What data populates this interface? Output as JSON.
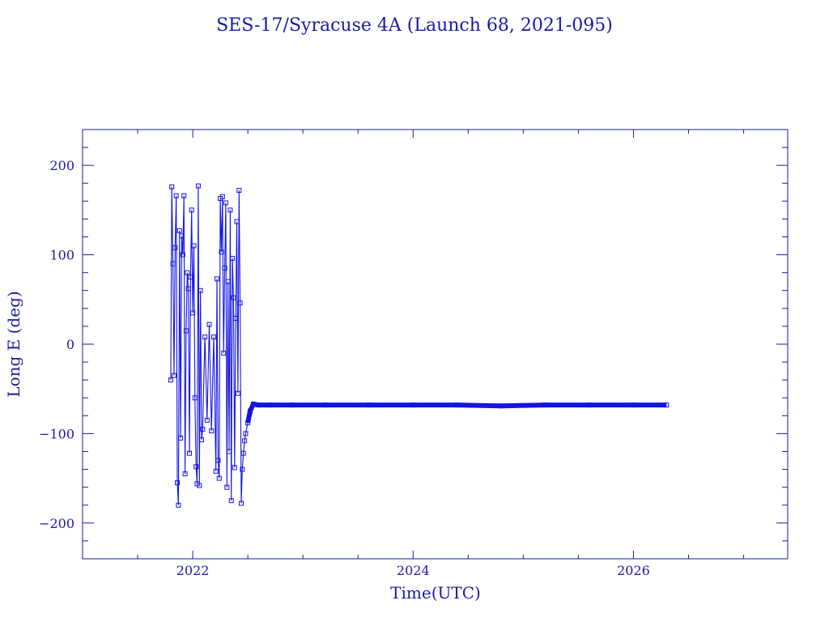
{
  "chart_data": {
    "type": "line",
    "title": "SES-17/Syracuse 4A (Launch 68, 2021-095)",
    "xlabel": "Time(UTC)",
    "ylabel": "Long E (deg)",
    "xlim": [
      2021.0,
      2027.4
    ],
    "ylim": [
      -240,
      240
    ],
    "x_major_ticks": [
      2022,
      2024,
      2026
    ],
    "x_minor_ticks": [
      2021.0,
      2021.5,
      2022.5,
      2023.0,
      2023.5,
      2024.5,
      2025.0,
      2025.5,
      2026.5,
      2027.0
    ],
    "y_major_ticks": [
      -200,
      -100,
      0,
      100,
      200
    ],
    "y_minor_ticks": [
      -220,
      -180,
      -160,
      -140,
      -120,
      -80,
      -60,
      -40,
      -20,
      20,
      40,
      60,
      80,
      120,
      140,
      160,
      180,
      220
    ],
    "grid": false,
    "colors": {
      "line": "#1414e6",
      "marker": "#1414e6",
      "axis": "#1a1aa6",
      "text": "#1a1aa6"
    },
    "series": [
      {
        "marker": "square",
        "points": [
          [
            2021.8,
            -40
          ],
          [
            2021.81,
            176
          ],
          [
            2021.82,
            90
          ],
          [
            2021.83,
            -35
          ],
          [
            2021.84,
            108
          ],
          [
            2021.85,
            166
          ],
          [
            2021.86,
            -155
          ],
          [
            2021.87,
            -180
          ],
          [
            2021.88,
            127
          ],
          [
            2021.89,
            -105
          ],
          [
            2021.9,
            121
          ],
          [
            2021.91,
            100
          ],
          [
            2021.92,
            166
          ],
          [
            2021.93,
            -145
          ],
          [
            2021.94,
            15
          ],
          [
            2021.95,
            80
          ],
          [
            2021.96,
            62
          ],
          [
            2021.97,
            -122
          ],
          [
            2021.98,
            75
          ],
          [
            2021.99,
            150
          ],
          [
            2022.0,
            35
          ],
          [
            2022.01,
            110
          ],
          [
            2022.02,
            -60
          ],
          [
            2022.03,
            -137
          ],
          [
            2022.04,
            -156
          ],
          [
            2022.05,
            177
          ],
          [
            2022.06,
            -158
          ],
          [
            2022.07,
            60
          ],
          [
            2022.08,
            -107
          ],
          [
            2022.09,
            -95
          ],
          [
            2022.11,
            8
          ],
          [
            2022.13,
            -85
          ],
          [
            2022.15,
            22
          ],
          [
            2022.17,
            -97
          ],
          [
            2022.19,
            8
          ],
          [
            2022.21,
            -142
          ],
          [
            2022.22,
            73
          ],
          [
            2022.23,
            -130
          ],
          [
            2022.24,
            -150
          ],
          [
            2022.25,
            163
          ],
          [
            2022.26,
            103
          ],
          [
            2022.27,
            165
          ],
          [
            2022.28,
            -10
          ],
          [
            2022.29,
            85
          ],
          [
            2022.3,
            158
          ],
          [
            2022.31,
            -160
          ],
          [
            2022.32,
            70
          ],
          [
            2022.33,
            -120
          ],
          [
            2022.34,
            150
          ],
          [
            2022.35,
            -175
          ],
          [
            2022.36,
            96
          ],
          [
            2022.37,
            52
          ],
          [
            2022.38,
            -138
          ],
          [
            2022.39,
            29
          ],
          [
            2022.4,
            137
          ],
          [
            2022.41,
            -55
          ],
          [
            2022.42,
            172
          ],
          [
            2022.43,
            46
          ],
          [
            2022.44,
            -178
          ],
          [
            2022.45,
            -140
          ],
          [
            2022.46,
            -122
          ],
          [
            2022.47,
            -108
          ],
          [
            2022.48,
            -100
          ],
          [
            2022.5,
            -88
          ],
          [
            2022.52,
            -75
          ],
          [
            2022.55,
            -67
          ],
          [
            2022.6,
            -68
          ],
          [
            2022.7,
            -68
          ],
          [
            2022.9,
            -68
          ],
          [
            2023.2,
            -68
          ],
          [
            2023.6,
            -68
          ],
          [
            2024.0,
            -68
          ],
          [
            2024.4,
            -68
          ],
          [
            2024.8,
            -69
          ],
          [
            2025.2,
            -68
          ],
          [
            2025.6,
            -68
          ],
          [
            2026.0,
            -68
          ],
          [
            2026.3,
            -68
          ]
        ]
      }
    ]
  }
}
